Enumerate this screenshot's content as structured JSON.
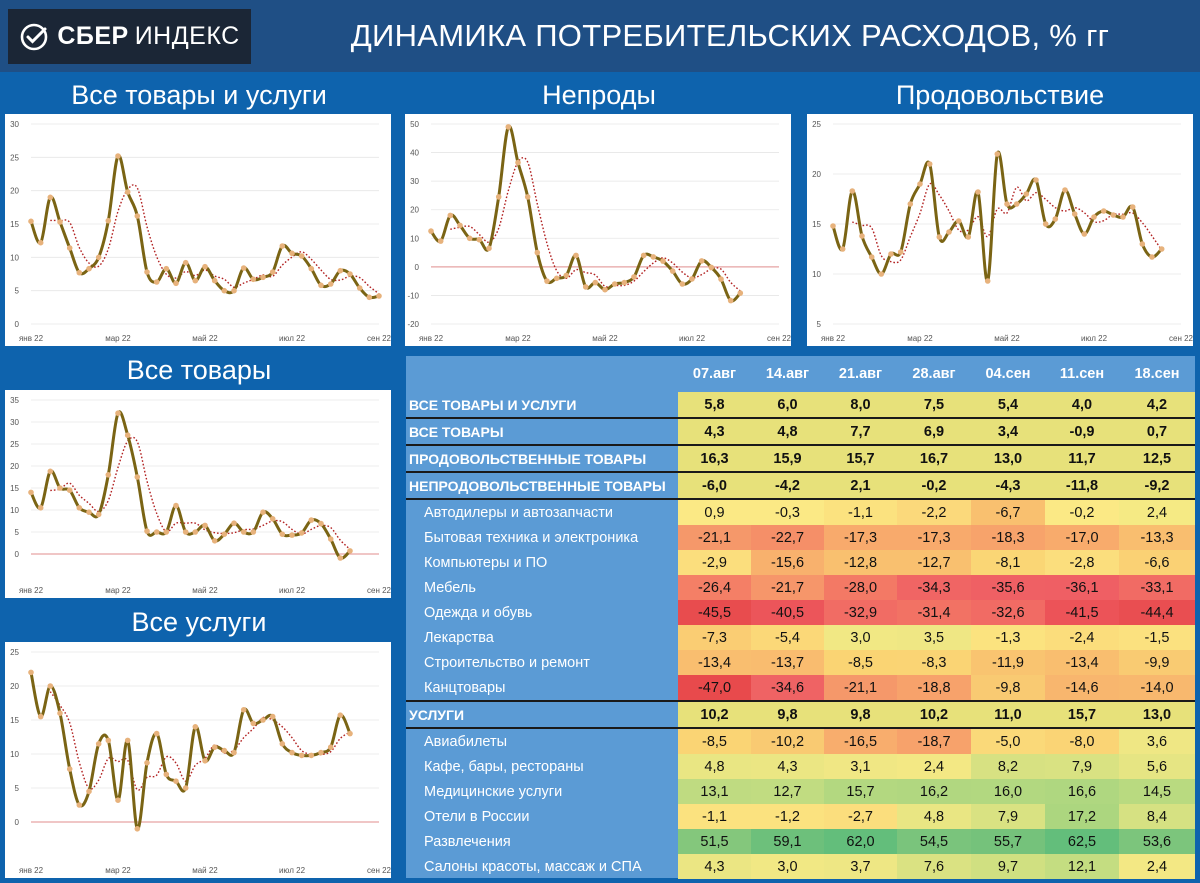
{
  "header": {
    "logo_bold": "СБЕР",
    "logo_light": "ИНДЕКС",
    "title": "ДИНАМИКА ПОТРЕБИТЕЛЬСКИХ РАСХОДОВ, % гг"
  },
  "colors": {
    "background": "#0e63ad",
    "header": "#1f4f85",
    "series_line": "#7a6414",
    "marker": "#e7b27c",
    "trend": "#b22222",
    "zero_line": "#e6a3a3",
    "table_bg": "#5b9bd5"
  },
  "chart_data": [
    {
      "type": "line",
      "title": "Все товары и услуги",
      "x_tick_labels": [
        "янв 22",
        "мар 22",
        "май 22",
        "июл 22",
        "сен 22"
      ],
      "x_tick_weeks": [
        0,
        9,
        18,
        27,
        36
      ],
      "ylim": [
        0,
        30
      ],
      "yticks": [
        0,
        5,
        10,
        15,
        20,
        25,
        30
      ],
      "zero_line": false,
      "series": [
        {
          "name": "week",
          "values": [
            15.4,
            12.2,
            19.0,
            15.3,
            11.4,
            7.7,
            8.3,
            10.0,
            15.5,
            25.2,
            19.8,
            16.2,
            7.8,
            6.3,
            8.3,
            6.1,
            9.2,
            6.5,
            8.6,
            6.5,
            5.0,
            5.0,
            8.4,
            6.7,
            7.0,
            7.8,
            11.7,
            10.6,
            10.2,
            8.3,
            5.8,
            6.0,
            8.0,
            7.5,
            5.4,
            4.0,
            4.2
          ]
        }
      ]
    },
    {
      "type": "line",
      "title": "Непроды",
      "x_tick_labels": [
        "янв 22",
        "мар 22",
        "май 22",
        "июл 22",
        "сен 22"
      ],
      "x_tick_weeks": [
        0,
        9,
        18,
        27,
        36
      ],
      "ylim": [
        -20,
        50
      ],
      "yticks": [
        -20,
        -10,
        0,
        10,
        20,
        30,
        40,
        50
      ],
      "zero_line": true,
      "series": [
        {
          "name": "week",
          "values": [
            12.5,
            9.0,
            18.0,
            14.5,
            10.0,
            9.5,
            6.5,
            24.5,
            49.0,
            36.5,
            24.5,
            5.0,
            -5.0,
            -4.0,
            -3.0,
            4.0,
            -7.0,
            -5.5,
            -8.0,
            -6.0,
            -5.5,
            -3.5,
            4.0,
            3.5,
            2.0,
            -1.5,
            -6.0,
            -4.2,
            2.1,
            -0.2,
            -4.3,
            -11.8,
            -9.2
          ]
        }
      ]
    },
    {
      "type": "line",
      "title": "Продовольствие",
      "x_tick_labels": [
        "янв 22",
        "мар 22",
        "май 22",
        "июл 22",
        "сен 22"
      ],
      "x_tick_weeks": [
        0,
        9,
        18,
        27,
        36
      ],
      "ylim": [
        5,
        25
      ],
      "yticks": [
        5,
        10,
        15,
        20,
        25
      ],
      "zero_line": false,
      "series": [
        {
          "name": "week",
          "values": [
            14.8,
            12.5,
            18.3,
            13.8,
            11.7,
            10.0,
            12.0,
            12.2,
            17.0,
            19.0,
            21.0,
            13.7,
            14.2,
            15.3,
            13.7,
            18.2,
            9.3,
            22.0,
            17.0,
            17.0,
            18.0,
            19.4,
            15.0,
            15.5,
            18.4,
            16.0,
            14.0,
            15.7,
            16.3,
            15.9,
            15.7,
            16.7,
            13.0,
            11.7,
            12.5
          ]
        }
      ]
    },
    {
      "type": "line",
      "title": "Все товары",
      "x_tick_labels": [
        "янв 22",
        "мар 22",
        "май 22",
        "июл 22",
        "сен 22"
      ],
      "x_tick_weeks": [
        0,
        9,
        18,
        27,
        36
      ],
      "ylim": [
        -5,
        35
      ],
      "yticks": [
        0,
        5,
        10,
        15,
        20,
        25,
        30,
        35
      ],
      "zero_line": true,
      "series": [
        {
          "name": "week",
          "values": [
            14.0,
            10.5,
            18.8,
            15.0,
            14.5,
            10.5,
            9.5,
            9.0,
            18.0,
            32.0,
            27.0,
            17.5,
            5.2,
            5.0,
            5.0,
            11.0,
            5.0,
            5.0,
            6.5,
            3.0,
            4.5,
            7.0,
            5.0,
            5.0,
            9.5,
            8.0,
            4.5,
            4.3,
            4.8,
            7.7,
            6.9,
            3.4,
            -0.9,
            0.7
          ]
        }
      ]
    },
    {
      "type": "line",
      "title": "Все услуги",
      "x_tick_labels": [
        "янв 22",
        "мар 22",
        "май 22",
        "июл 22",
        "сен 22"
      ],
      "x_tick_weeks": [
        0,
        9,
        18,
        27,
        36
      ],
      "ylim": [
        -5,
        25
      ],
      "yticks": [
        0,
        5,
        10,
        15,
        20,
        25
      ],
      "zero_line": true,
      "series": [
        {
          "name": "week",
          "values": [
            22.0,
            15.5,
            20.0,
            16.0,
            7.8,
            2.5,
            4.5,
            11.5,
            12.0,
            3.2,
            12.0,
            -1.0,
            8.7,
            13.0,
            7.0,
            6.0,
            5.0,
            14.0,
            9.0,
            11.0,
            10.5,
            10.2,
            16.5,
            14.5,
            15.0,
            15.5,
            11.5,
            10.2,
            9.8,
            9.8,
            10.2,
            11.0,
            15.7,
            13.0
          ]
        }
      ]
    }
  ],
  "table": {
    "columns": [
      "07.авг",
      "14.авг",
      "21.авг",
      "28.авг",
      "04.сен",
      "11.сен",
      "18.сен"
    ],
    "rows": [
      {
        "label": "ВСЕ ТОВАРЫ И УСЛУГИ",
        "kind": "main",
        "values": [
          "5,8",
          "6,0",
          "8,0",
          "7,5",
          "5,4",
          "4,0",
          "4,2"
        ],
        "colors": [
          "#e7e17a",
          "#e7e17a",
          "#e7e17a",
          "#e7e17a",
          "#e7e17a",
          "#e7e17a",
          "#e7e17a"
        ]
      },
      {
        "label": "ВСЕ ТОВАРЫ",
        "kind": "main",
        "values": [
          "4,3",
          "4,8",
          "7,7",
          "6,9",
          "3,4",
          "-0,9",
          "0,7"
        ],
        "colors": [
          "#e7e17a",
          "#e7e17a",
          "#e7e17a",
          "#e7e17a",
          "#e7e17a",
          "#e7e17a",
          "#e7e17a"
        ]
      },
      {
        "label": "ПРОДОВОЛЬСТВЕННЫЕ ТОВАРЫ",
        "kind": "main",
        "values": [
          "16,3",
          "15,9",
          "15,7",
          "16,7",
          "13,0",
          "11,7",
          "12,5"
        ],
        "colors": [
          "#e7e17a",
          "#e7e17a",
          "#e7e17a",
          "#e7e17a",
          "#e7e17a",
          "#e7e17a",
          "#e7e17a"
        ]
      },
      {
        "label": "НЕПРОДОВОЛЬСТВЕННЫЕ ТОВАРЫ",
        "kind": "main",
        "values": [
          "-6,0",
          "-4,2",
          "2,1",
          "-0,2",
          "-4,3",
          "-11,8",
          "-9,2"
        ],
        "colors": [
          "#e7e17a",
          "#e7e17a",
          "#e7e17a",
          "#e7e17a",
          "#e7e17a",
          "#e7e17a",
          "#e7e17a"
        ]
      },
      {
        "label": "Автодилеры и автозапчасти",
        "kind": "sub",
        "values": [
          "0,9",
          "-0,3",
          "-1,1",
          "-2,2",
          "-6,7",
          "-0,2",
          "2,4"
        ],
        "colors": [
          "#fbe985",
          "#fbe985",
          "#fbe27f",
          "#fbd97b",
          "#f9c06f",
          "#fbe985",
          "#f5ea84"
        ]
      },
      {
        "label": "Бытовая техника и электроника",
        "kind": "sub",
        "values": [
          "-21,1",
          "-22,7",
          "-17,3",
          "-17,3",
          "-18,3",
          "-17,0",
          "-13,3"
        ],
        "colors": [
          "#f5986a",
          "#f58f68",
          "#f8aa6c",
          "#f8aa6c",
          "#f7a36b",
          "#f8ab6c",
          "#f9be6f"
        ]
      },
      {
        "label": "Компьютеры и ПО",
        "kind": "sub",
        "values": [
          "-2,9",
          "-15,6",
          "-12,8",
          "-12,7",
          "-8,1",
          "-2,8",
          "-6,6"
        ],
        "colors": [
          "#fbde7d",
          "#f8b16d",
          "#f9c06f",
          "#f9c06f",
          "#fad675",
          "#fbde7d",
          "#fad174"
        ]
      },
      {
        "label": "Мебель",
        "kind": "sub",
        "values": [
          "-26,4",
          "-21,7",
          "-28,0",
          "-34,3",
          "-35,6",
          "-36,1",
          "-33,1"
        ],
        "colors": [
          "#f47f66",
          "#f6966a",
          "#f37965",
          "#f06564",
          "#ef6064",
          "#ef5f64",
          "#f16b64"
        ]
      },
      {
        "label": "Одежда и обувь",
        "kind": "sub",
        "values": [
          "-45,5",
          "-40,5",
          "-32,9",
          "-31,4",
          "-32,6",
          "-41,5",
          "-44,4"
        ],
        "colors": [
          "#e84c4e",
          "#ec555a",
          "#f16c64",
          "#f27264",
          "#f16b64",
          "#ec5358",
          "#e94e51"
        ]
      },
      {
        "label": "Лекарства",
        "kind": "sub",
        "values": [
          "-7,3",
          "-5,4",
          "3,0",
          "3,5",
          "-1,3",
          "-2,4",
          "-1,5"
        ],
        "colors": [
          "#facd73",
          "#fbd878",
          "#f1e884",
          "#efe784",
          "#fbe37f",
          "#fbdd7c",
          "#fbe17f"
        ]
      },
      {
        "label": "Строительство и ремонт",
        "kind": "sub",
        "values": [
          "-13,4",
          "-13,7",
          "-8,5",
          "-8,3",
          "-11,9",
          "-13,4",
          "-9,9"
        ],
        "colors": [
          "#f9be6f",
          "#f9bc6f",
          "#fad473",
          "#fad474",
          "#f9c470",
          "#f9be6f",
          "#f9cb72"
        ]
      },
      {
        "label": "Канцтовары",
        "kind": "sub",
        "values": [
          "-47,0",
          "-34,6",
          "-21,1",
          "-18,8",
          "-9,8",
          "-14,6",
          "-14,0"
        ],
        "colors": [
          "#e84a4c",
          "#ef6364",
          "#f5986a",
          "#f7a26b",
          "#f9ca72",
          "#f8b66e",
          "#f8b86e"
        ]
      },
      {
        "label": "УСЛУГИ",
        "kind": "main",
        "values": [
          "10,2",
          "9,8",
          "9,8",
          "10,2",
          "11,0",
          "15,7",
          "13,0"
        ],
        "colors": [
          "#e7e17a",
          "#e7e17a",
          "#e7e17a",
          "#e7e17a",
          "#e7e17a",
          "#e7e17a",
          "#e7e17a"
        ]
      },
      {
        "label": "Авиабилеты",
        "kind": "sub",
        "values": [
          "-8,5",
          "-10,2",
          "-16,5",
          "-18,7",
          "-5,0",
          "-8,0",
          "3,6"
        ],
        "colors": [
          "#fad474",
          "#f9ca72",
          "#f8ad6d",
          "#f7a26b",
          "#fad979",
          "#fad475",
          "#efe784"
        ]
      },
      {
        "label": "Кафе, бары, рестораны",
        "kind": "sub",
        "values": [
          "4,8",
          "4,3",
          "3,1",
          "2,4",
          "8,2",
          "7,9",
          "5,6"
        ],
        "colors": [
          "#e9e683",
          "#ebe683",
          "#f0e784",
          "#f3e884",
          "#d7e182",
          "#d9e282",
          "#e6e583"
        ]
      },
      {
        "label": "Медицинские услуги",
        "kind": "sub",
        "values": [
          "13,1",
          "12,7",
          "15,7",
          "16,2",
          "16,0",
          "16,6",
          "14,5"
        ],
        "colors": [
          "#bfdb81",
          "#c1dc81",
          "#b3d880",
          "#b1d780",
          "#b2d880",
          "#afd780",
          "#b9da80"
        ]
      },
      {
        "label": "Отели в России",
        "kind": "sub",
        "values": [
          "-1,1",
          "-1,2",
          "-2,7",
          "4,8",
          "7,9",
          "17,2",
          "8,4"
        ],
        "colors": [
          "#fbe27f",
          "#fbe27f",
          "#fbde7d",
          "#e9e683",
          "#d9e282",
          "#acd67f",
          "#d6e182"
        ]
      },
      {
        "label": "Развлечения",
        "kind": "sub",
        "values": [
          "51,5",
          "59,1",
          "62,0",
          "54,5",
          "55,7",
          "62,5",
          "53,6"
        ],
        "colors": [
          "#84c77c",
          "#6dc07b",
          "#63be7b",
          "#7ac47c",
          "#75c27b",
          "#63be7b",
          "#7cc57c"
        ]
      },
      {
        "label": "Салоны красоты, массаж и СПА",
        "kind": "sub",
        "values": [
          "4,3",
          "3,0",
          "3,7",
          "7,6",
          "9,7",
          "12,1",
          "2,4"
        ],
        "colors": [
          "#ebe683",
          "#f1e884",
          "#eee784",
          "#dae282",
          "#d0e081",
          "#c4dd81",
          "#f3e884"
        ]
      }
    ]
  },
  "chart_titles": {
    "c1": "Все товары и услуги",
    "c2": "Непроды",
    "c3": "Продовольствие",
    "c4": "Все товары",
    "c5": "Все услуги"
  }
}
